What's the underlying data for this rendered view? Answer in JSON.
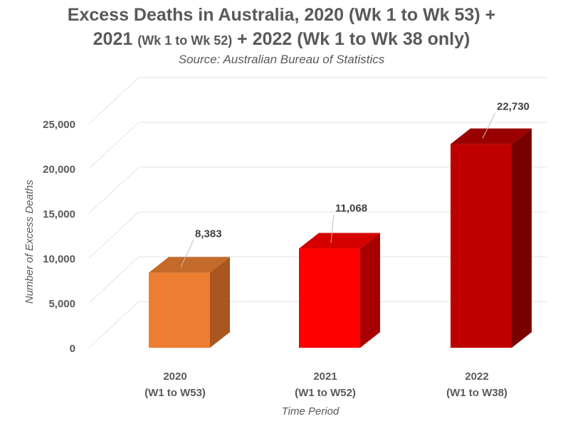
{
  "chart_data": {
    "type": "bar",
    "title": {
      "part1": "Excess Deaths in Australia, 2020 (Wk 1 to Wk 53) +",
      "part2a": "2021 ",
      "part2b": "(Wk 1 to Wk 52)",
      "part2c": " + 2022 (Wk 1 to Wk 38 only)"
    },
    "subtitle": "Source: Australian Bureau of Statistics",
    "xlabel": "Time Period",
    "ylabel": "Number of Excess Deaths",
    "ylim": [
      0,
      25000
    ],
    "yticks": [
      0,
      5000,
      10000,
      15000,
      20000,
      25000
    ],
    "ytick_labels": [
      "0",
      "5,000",
      "10,000",
      "15,000",
      "20,000",
      "25,000"
    ],
    "categories": [
      {
        "year": "2020",
        "weeks": "(W1 to W53)"
      },
      {
        "year": "2021",
        "weeks": "(W1 to W52)"
      },
      {
        "year": "2022",
        "weeks": "(W1 to W38)"
      }
    ],
    "values": [
      8383,
      11068,
      22730
    ],
    "value_labels": [
      "8,383",
      "11,068",
      "22,730"
    ],
    "colors": [
      {
        "front": "#ED7D31",
        "top": "#C46A2A",
        "side": "#A9561F"
      },
      {
        "front": "#FF0000",
        "top": "#D50000",
        "side": "#A80000"
      },
      {
        "front": "#C00000",
        "top": "#9A0000",
        "side": "#7A0000"
      }
    ],
    "gridlines": true
  }
}
